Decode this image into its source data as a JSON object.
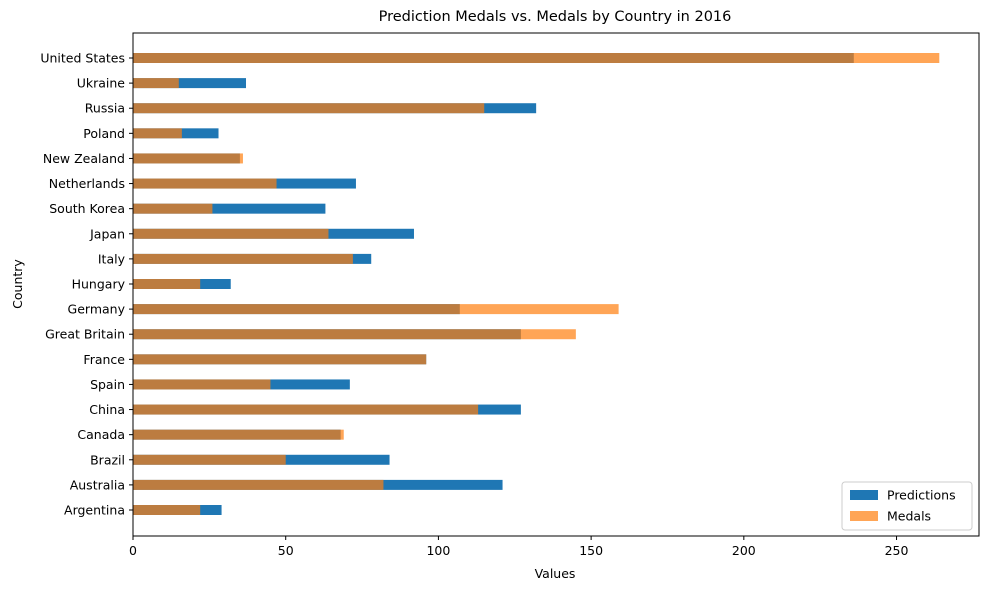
{
  "chart_data": {
    "type": "bar",
    "orientation": "horizontal",
    "title": "Prediction Medals vs. Medals by Country in 2016",
    "xlabel": "Values",
    "ylabel": "Country",
    "xlim": [
      0,
      277
    ],
    "xticks": [
      0,
      50,
      100,
      150,
      200,
      250
    ],
    "grid": false,
    "legend_position": "bottom-right",
    "categories": [
      "Argentina",
      "Australia",
      "Brazil",
      "Canada",
      "China",
      "Spain",
      "France",
      "Great Britain",
      "Germany",
      "Hungary",
      "Italy",
      "Japan",
      "South Korea",
      "Netherlands",
      "New Zealand",
      "Poland",
      "Russia",
      "Ukraine",
      "United States"
    ],
    "series": [
      {
        "name": "Predictions",
        "color": "#1f77b4",
        "values": [
          29,
          121,
          84,
          68,
          127,
          71,
          96,
          127,
          107,
          32,
          78,
          92,
          63,
          73,
          35,
          28,
          132,
          37,
          236
        ]
      },
      {
        "name": "Medals",
        "color": "#ff7f0e",
        "opacity": 0.7,
        "values": [
          22,
          82,
          50,
          69,
          113,
          45,
          96,
          145,
          159,
          22,
          72,
          64,
          26,
          47,
          36,
          16,
          115,
          15,
          264
        ]
      }
    ]
  }
}
